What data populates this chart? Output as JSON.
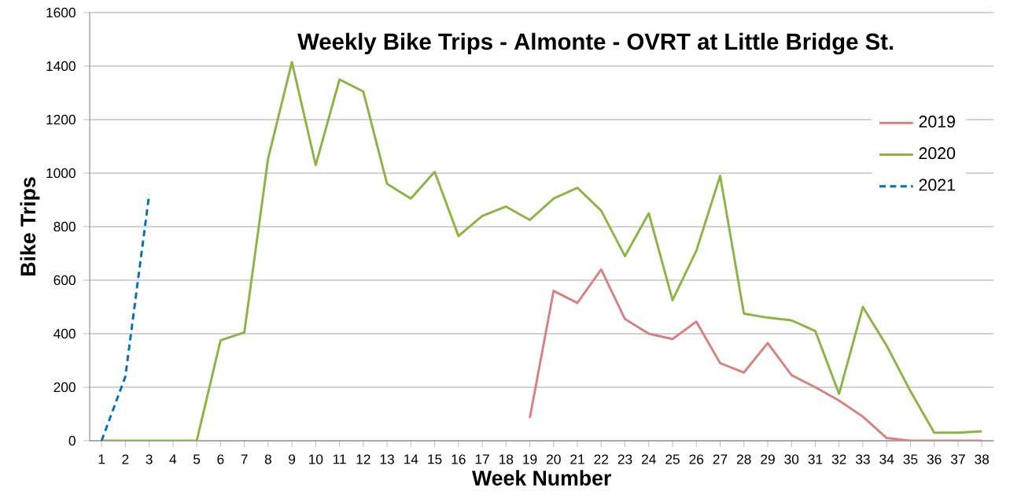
{
  "chart_data": {
    "type": "line",
    "title": "Weekly Bike Trips - Almonte - OVRT at Little Bridge St.",
    "xlabel": "Week Number",
    "ylabel": "Bike Trips",
    "categories": [
      "1",
      "2",
      "3",
      "4",
      "5",
      "6",
      "7",
      "8",
      "9",
      "10",
      "11",
      "12",
      "13",
      "14",
      "15",
      "16",
      "17",
      "18",
      "19",
      "20",
      "21",
      "22",
      "23",
      "24",
      "25",
      "26",
      "27",
      "28",
      "29",
      "30",
      "31",
      "32",
      "33",
      "34",
      "35",
      "36",
      "37",
      "38"
    ],
    "series": [
      {
        "name": "2019",
        "color": "#d98080",
        "line_style": "solid",
        "values": [
          null,
          null,
          null,
          null,
          null,
          null,
          null,
          null,
          null,
          null,
          null,
          null,
          null,
          null,
          null,
          null,
          null,
          null,
          85,
          560,
          515,
          640,
          455,
          400,
          380,
          445,
          290,
          255,
          365,
          245,
          200,
          150,
          90,
          10,
          0,
          0,
          0,
          0
        ]
      },
      {
        "name": "2020",
        "color": "#8cb443",
        "line_style": "solid",
        "values": [
          0,
          0,
          0,
          0,
          0,
          375,
          405,
          1055,
          1415,
          1030,
          1350,
          1305,
          960,
          905,
          1005,
          765,
          840,
          875,
          825,
          905,
          945,
          860,
          690,
          850,
          525,
          710,
          990,
          475,
          460,
          450,
          410,
          175,
          500,
          355,
          185,
          30,
          30,
          35
        ]
      },
      {
        "name": "2021",
        "color": "#0070c0",
        "line_style": "dashed",
        "values": [
          0,
          240,
          920,
          null,
          null,
          null,
          null,
          null,
          null,
          null,
          null,
          null,
          null,
          null,
          null,
          null,
          null,
          null,
          null,
          null,
          null,
          null,
          null,
          null,
          null,
          null,
          null,
          null,
          null,
          null,
          null,
          null,
          null,
          null,
          null,
          null,
          null,
          null
        ]
      }
    ],
    "ylim": [
      0,
      1600
    ],
    "yticks": [
      0,
      200,
      400,
      600,
      800,
      1000,
      1200,
      1400,
      1600
    ],
    "grid": "y",
    "legend": "right"
  }
}
